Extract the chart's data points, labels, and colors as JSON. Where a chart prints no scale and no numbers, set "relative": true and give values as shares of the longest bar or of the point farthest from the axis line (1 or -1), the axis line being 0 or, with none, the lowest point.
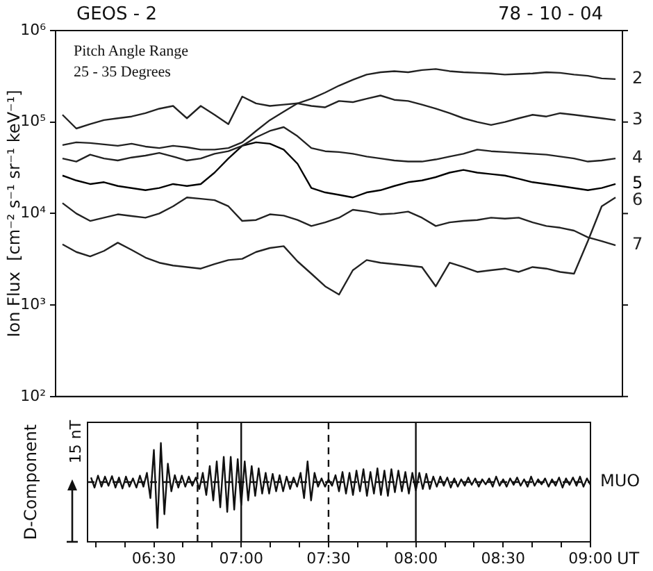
{
  "chart_data": [
    {
      "type": "line",
      "title": "GEOS - 2",
      "subtitle": "78 - 10 - 04",
      "ylabel": "Ion Flux  [cm⁻² s⁻¹ sr⁻¹ keV⁻¹]",
      "annotations": [
        "Pitch Angle Range",
        "25 - 35 Degrees"
      ],
      "categories": [
        null,
        null,
        null,
        null,
        null,
        null,
        null,
        null,
        null,
        null,
        null,
        null,
        null,
        null,
        null,
        null,
        null,
        null,
        null,
        null,
        null,
        null,
        null,
        null,
        null,
        null,
        null,
        null,
        null,
        null,
        null,
        null,
        null,
        null,
        null,
        null,
        null,
        null,
        null,
        null,
        null
      ],
      "ylim": [
        100,
        1000000
      ],
      "yticks": [
        {
          "value": 100,
          "label": "10²"
        },
        {
          "value": 1000,
          "label": "10³"
        },
        {
          "value": 10000,
          "label": "10⁴"
        },
        {
          "value": 100000,
          "label": "10⁵"
        },
        {
          "value": 1000000,
          "label": "10⁶"
        }
      ],
      "log": true,
      "tick_labels": "y",
      "grid": false,
      "legend": "right",
      "marker": "none",
      "line_style": "solid",
      "series": [
        {
          "name": "2",
          "color": "#222222",
          "values": [
            56000,
            60000,
            59000,
            57000,
            55000,
            58000,
            54000,
            52000,
            55000,
            53000,
            50000,
            50000,
            52000,
            60000,
            80000,
            105000,
            130000,
            160000,
            180000,
            210000,
            250000,
            290000,
            330000,
            350000,
            360000,
            350000,
            370000,
            380000,
            360000,
            350000,
            345000,
            340000,
            330000,
            335000,
            340000,
            350000,
            345000,
            330000,
            320000,
            300000,
            295000
          ]
        },
        {
          "name": "3",
          "color": "#222222",
          "values": [
            120000,
            85000,
            95000,
            105000,
            110000,
            115000,
            125000,
            140000,
            150000,
            110000,
            150000,
            120000,
            95000,
            190000,
            160000,
            150000,
            155000,
            160000,
            150000,
            145000,
            170000,
            165000,
            180000,
            195000,
            175000,
            170000,
            155000,
            140000,
            125000,
            110000,
            100000,
            93000,
            100000,
            110000,
            120000,
            115000,
            125000,
            120000,
            115000,
            110000,
            105000
          ]
        },
        {
          "name": "4",
          "color": "#222222",
          "values": [
            40000,
            37000,
            44000,
            40000,
            38000,
            41000,
            43000,
            46000,
            42000,
            38000,
            40000,
            45000,
            48000,
            55000,
            68000,
            80000,
            88000,
            70000,
            52000,
            48000,
            47000,
            45000,
            42000,
            40000,
            38000,
            37000,
            37000,
            39000,
            42000,
            45000,
            50000,
            48000,
            47000,
            46000,
            45000,
            44000,
            42000,
            40000,
            37000,
            38000,
            40000
          ]
        },
        {
          "name": "5",
          "color": "#000000",
          "values": [
            26000,
            23000,
            21000,
            22000,
            20000,
            19000,
            18000,
            19000,
            21000,
            20000,
            21000,
            28000,
            40000,
            55000,
            60000,
            58000,
            50000,
            35000,
            19000,
            17000,
            16000,
            15000,
            17000,
            18000,
            20000,
            22000,
            23000,
            25000,
            28000,
            30000,
            28000,
            27000,
            26000,
            24000,
            22000,
            21000,
            20000,
            19000,
            18000,
            19000,
            21000
          ]
        },
        {
          "name": "6",
          "color": "#222222",
          "values": [
            4600,
            3800,
            3400,
            3900,
            4800,
            4000,
            3300,
            2900,
            2700,
            2600,
            2500,
            2800,
            3100,
            3200,
            3800,
            4200,
            4400,
            3000,
            2200,
            1600,
            1300,
            2400,
            3100,
            2900,
            2800,
            2700,
            2600,
            1600,
            2900,
            2600,
            2300,
            2400,
            2500,
            2300,
            2600,
            2500,
            2300,
            2200,
            5000,
            12000,
            15000
          ]
        },
        {
          "name": "7",
          "color": "#222222",
          "values": [
            13000,
            10000,
            8300,
            9000,
            9800,
            9400,
            9000,
            10000,
            12000,
            15000,
            14500,
            14000,
            12000,
            8300,
            8500,
            9800,
            9500,
            8500,
            7300,
            8000,
            9000,
            11000,
            10500,
            9800,
            10000,
            10500,
            9000,
            7300,
            8000,
            8300,
            8500,
            9000,
            8800,
            9000,
            8000,
            7300,
            7000,
            6500,
            5500,
            5000,
            4500
          ]
        }
      ]
    },
    {
      "type": "line",
      "xlabel": "UT",
      "ylabel": "D-Component",
      "annotations": [
        "15 nT"
      ],
      "relative": true,
      "xlim": [
        6.12,
        9.0
      ],
      "xticks": [
        {
          "value": 6.1667,
          "label": null
        },
        {
          "value": 6.3333,
          "label": null
        },
        {
          "value": 6.5,
          "label": "06:30"
        },
        {
          "value": 6.6667,
          "label": null
        },
        {
          "value": 6.8333,
          "label": null
        },
        {
          "value": 7,
          "label": "07:00"
        },
        {
          "value": 7.1667,
          "label": null
        },
        {
          "value": 7.3333,
          "label": null
        },
        {
          "value": 7.5,
          "label": "07:30"
        },
        {
          "value": 7.6667,
          "label": null
        },
        {
          "value": 7.8333,
          "label": null
        },
        {
          "value": 8,
          "label": "08:00"
        },
        {
          "value": 8.1667,
          "label": null
        },
        {
          "value": 8.3333,
          "label": null
        },
        {
          "value": 8.5,
          "label": "08:30"
        },
        {
          "value": 8.6667,
          "label": null
        },
        {
          "value": 8.8333,
          "label": null
        },
        {
          "value": 9,
          "label": "09:00"
        }
      ],
      "ref_lines": [
        {
          "axis": "y",
          "value": 0,
          "line_style": "dashed"
        },
        {
          "axis": "x",
          "value": 6.75,
          "line_style": "dashed"
        },
        {
          "axis": "x",
          "value": 7,
          "line_style": "solid"
        },
        {
          "axis": "x",
          "value": 7.5,
          "line_style": "dashed"
        },
        {
          "axis": "x",
          "value": 8,
          "line_style": "solid"
        }
      ],
      "grid": false,
      "legend": "right",
      "marker": "none",
      "line_style": "solid",
      "series": [
        {
          "name": "MUO",
          "color": "#111111",
          "x": [
            6.14,
            6.16,
            6.18,
            6.2,
            6.22,
            6.24,
            6.26,
            6.28,
            6.3,
            6.32,
            6.34,
            6.36,
            6.38,
            6.4,
            6.42,
            6.44,
            6.46,
            6.48,
            6.5,
            6.52,
            6.54,
            6.56,
            6.58,
            6.6,
            6.62,
            6.64,
            6.66,
            6.68,
            6.7,
            6.72,
            6.74,
            6.76,
            6.78,
            6.8,
            6.82,
            6.84,
            6.86,
            6.88,
            6.9,
            6.92,
            6.94,
            6.96,
            6.98,
            7,
            7.02,
            7.04,
            7.06,
            7.08,
            7.1,
            7.12,
            7.14,
            7.16,
            7.18,
            7.2,
            7.22,
            7.24,
            7.26,
            7.28,
            7.3,
            7.32,
            7.34,
            7.36,
            7.38,
            7.4,
            7.42,
            7.44,
            7.46,
            7.48,
            7.5,
            7.52,
            7.54,
            7.56,
            7.58,
            7.6,
            7.62,
            7.64,
            7.66,
            7.68,
            7.7,
            7.72,
            7.74,
            7.76,
            7.78,
            7.8,
            7.82,
            7.84,
            7.86,
            7.88,
            7.9,
            7.92,
            7.94,
            7.96,
            7.98,
            8,
            8.02,
            8.04,
            8.06,
            8.08,
            8.1,
            8.12,
            8.14,
            8.16,
            8.18,
            8.2,
            8.22,
            8.24,
            8.26,
            8.28,
            8.3,
            8.32,
            8.34,
            8.36,
            8.38,
            8.4,
            8.42,
            8.44,
            8.46,
            8.48,
            8.5,
            8.52,
            8.54,
            8.56,
            8.58,
            8.6,
            8.62,
            8.64,
            8.66,
            8.68,
            8.7,
            8.72,
            8.74,
            8.76,
            8.78,
            8.8,
            8.82,
            8.84,
            8.86,
            8.88,
            8.9,
            8.92,
            8.94,
            8.96,
            8.98,
            9
          ],
          "values": [
            0.1,
            -0.12,
            0.14,
            -0.1,
            0.12,
            -0.08,
            0.13,
            -0.12,
            0.1,
            -0.14,
            0.12,
            -0.1,
            0.08,
            -0.12,
            0.14,
            -0.1,
            0.2,
            -0.35,
            0.7,
            -1.0,
            0.85,
            -0.7,
            0.4,
            -0.2,
            0.15,
            -0.12,
            0.14,
            -0.1,
            0.12,
            -0.08,
            0.1,
            -0.15,
            0.2,
            -0.28,
            0.35,
            -0.4,
            0.45,
            -0.55,
            0.55,
            -0.65,
            0.55,
            -0.6,
            0.5,
            -0.5,
            0.45,
            -0.4,
            0.35,
            -0.3,
            0.3,
            -0.25,
            0.2,
            -0.25,
            0.18,
            -0.2,
            0.15,
            -0.2,
            0.12,
            -0.15,
            0.1,
            -0.1,
            0.2,
            -0.35,
            0.45,
            -0.4,
            0.2,
            -0.1,
            0.08,
            -0.1,
            0.06,
            -0.08,
            0.15,
            -0.2,
            0.22,
            -0.25,
            0.2,
            -0.28,
            0.25,
            -0.2,
            0.28,
            -0.3,
            0.22,
            -0.25,
            0.3,
            -0.28,
            0.25,
            -0.3,
            0.28,
            -0.22,
            0.25,
            -0.2,
            0.22,
            -0.25,
            0.2,
            -0.18,
            0.2,
            -0.15,
            0.18,
            -0.15,
            0.12,
            -0.1,
            0.12,
            -0.08,
            0.1,
            -0.12,
            0.08,
            -0.1,
            0.06,
            -0.08,
            0.1,
            -0.06,
            0.08,
            -0.1,
            0.06,
            -0.05,
            0.08,
            -0.1,
            0.12,
            -0.08,
            0.06,
            -0.1,
            0.08,
            -0.06,
            0.1,
            -0.08,
            0.06,
            -0.1,
            0.12,
            -0.08,
            0.06,
            -0.05,
            0.08,
            -0.1,
            0.06,
            -0.08,
            0.1,
            -0.12,
            0.08,
            -0.06,
            0.1,
            -0.08,
            0.12,
            -0.1,
            0.08,
            -0.06
          ]
        }
      ]
    }
  ]
}
